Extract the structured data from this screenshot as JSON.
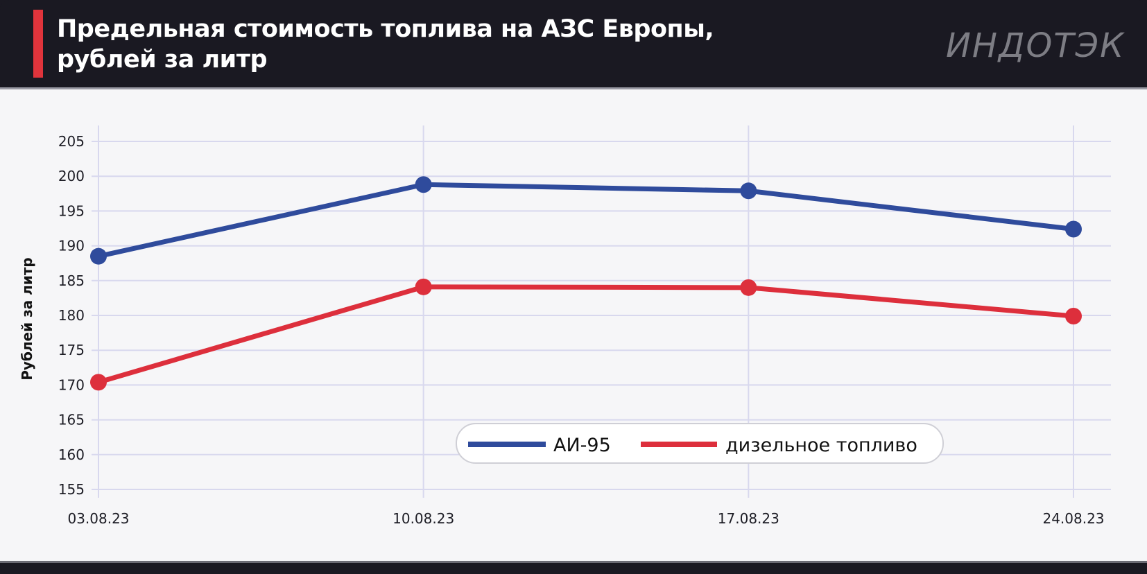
{
  "header": {
    "title_line1": "Предельная стоимость топлива на АЗС Европы,",
    "title_line2": "рублей за литр",
    "logo_text": "ИНДОТЭК"
  },
  "colors": {
    "background": "#1a1922",
    "accent": "#e0343c",
    "plot_background": "#f6f6f8",
    "grid": "#d8d8ee",
    "series_ai95": "#2f4b9c",
    "series_diesel": "#dd2f3c"
  },
  "chart_data": {
    "type": "line",
    "title": "Предельная стоимость топлива на АЗС Европы, рублей за литр",
    "xlabel": "",
    "ylabel": "Рублей за литр",
    "categories": [
      "03.08.23",
      "10.08.23",
      "17.08.23",
      "24.08.23"
    ],
    "ylim": [
      153,
      207
    ],
    "yticks": [
      155,
      160,
      165,
      170,
      175,
      180,
      185,
      190,
      195,
      200,
      205
    ],
    "grid": true,
    "legend_position": "bottom-center",
    "series": [
      {
        "name": "АИ-95",
        "values": [
          188.5,
          198.8,
          197.9,
          192.4
        ]
      },
      {
        "name": "дизельное топливо",
        "values": [
          170.4,
          184.1,
          184.0,
          179.9
        ]
      }
    ]
  }
}
